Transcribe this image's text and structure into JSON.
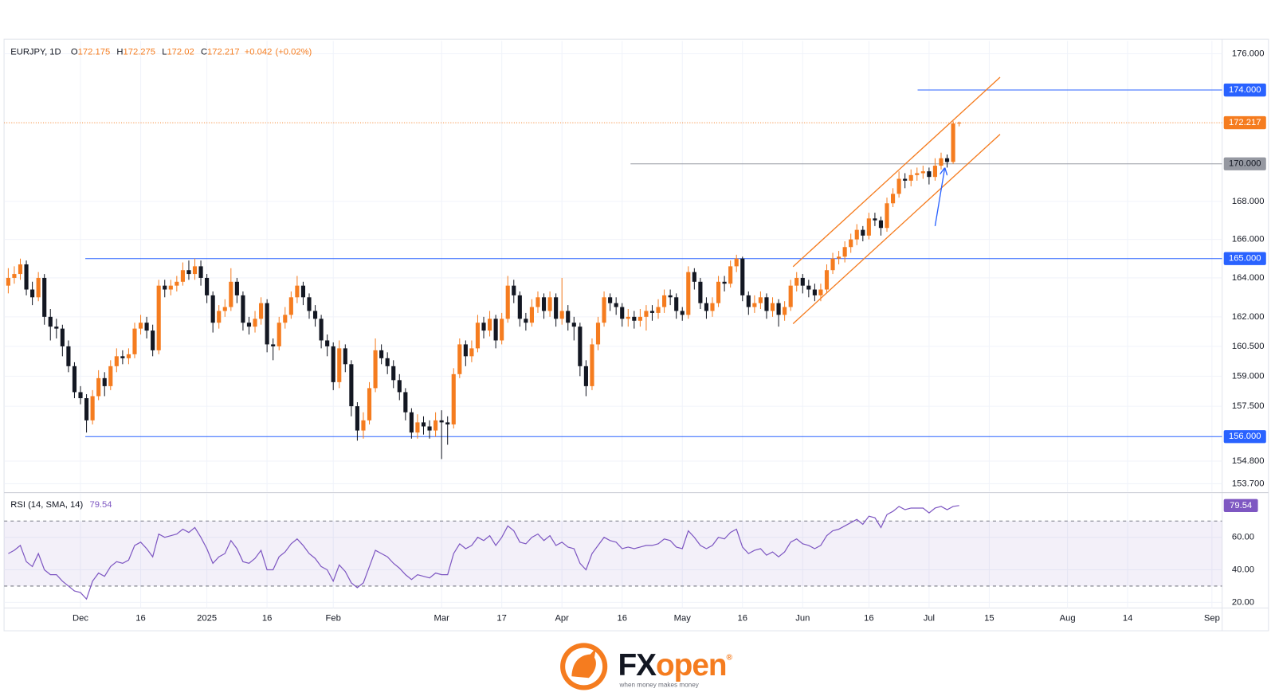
{
  "chart_data": [
    {
      "type": "candlestick",
      "title": "EURJPY, 1D",
      "ohlc_labels": [
        "O",
        "H",
        "L",
        "C"
      ],
      "change": "+0.042",
      "change_pct": "(+0.02%)",
      "up_color": "#f57c1f",
      "down_color": "#131722",
      "log_scale": true,
      "grid": true,
      "xlim": [
        -0.7,
        201.7
      ],
      "ylim": [
        153.31,
        176.72
      ],
      "yticks": [
        {
          "value": 176,
          "label": "176.000"
        },
        {
          "value": 168,
          "label": "168.000"
        },
        {
          "value": 166,
          "label": "166.000"
        },
        {
          "value": 164,
          "label": "164.000"
        },
        {
          "value": 162,
          "label": "162.000"
        },
        {
          "value": 160.5,
          "label": "160.500"
        },
        {
          "value": 159,
          "label": "159.000"
        },
        {
          "value": 157.5,
          "label": "157.500"
        },
        {
          "value": 154.8,
          "label": "154.800"
        },
        {
          "value": 153.7,
          "label": "153.700"
        }
      ],
      "open": [
        163.6,
        164.0,
        164.2,
        164.7,
        163.4,
        163.0,
        164.0,
        162.0,
        161.5,
        161.4,
        160.5,
        159.5,
        158.2,
        157.9,
        156.8,
        158.0,
        158.9,
        158.5,
        159.5,
        160.0,
        159.9,
        160.1,
        161.4,
        161.7,
        161.3,
        160.3,
        163.6,
        163.4,
        163.6,
        163.8,
        164.4,
        164.2,
        164.6,
        164.0,
        163.1,
        161.7,
        162.3,
        162.5,
        163.8,
        163.1,
        161.7,
        161.5,
        161.9,
        162.7,
        160.6,
        160.5,
        161.7,
        162.1,
        163.0,
        163.6,
        163.0,
        162.3,
        161.9,
        160.8,
        160.5,
        158.7,
        160.4,
        159.6,
        157.5,
        156.3,
        156.8,
        158.4,
        160.3,
        159.9,
        159.5,
        158.8,
        158.2,
        157.2,
        156.2,
        156.7,
        156.5,
        156.3,
        156.8,
        156.7,
        156.6,
        159.1,
        160.6,
        160.0,
        160.4,
        161.7,
        161.3,
        161.9,
        160.8,
        161.9,
        163.6,
        163.1,
        161.9,
        161.7,
        162.5,
        163.0,
        162.3,
        163.0,
        161.9,
        162.3,
        161.7,
        161.5,
        159.5,
        158.5,
        160.6,
        161.7,
        163.0,
        162.7,
        162.5,
        161.9,
        162.0,
        161.8,
        162.0,
        162.3,
        162.2,
        162.5,
        163.1,
        163.0,
        162.3,
        162.1,
        164.3,
        163.8,
        162.7,
        162.3,
        162.7,
        163.8,
        163.7,
        164.6,
        165.0,
        163.1,
        162.5,
        162.7,
        163.0,
        162.3,
        162.7,
        162.1,
        162.5,
        163.6,
        164.0,
        163.6,
        163.4,
        163.1,
        163.4,
        164.4,
        165.0,
        165.1,
        165.6,
        166.0,
        166.5,
        166.2,
        167.1,
        167.0,
        166.6,
        167.9,
        168.4,
        169.2,
        169.1,
        169.4,
        169.5,
        169.6,
        169.3,
        169.9,
        170.3,
        170.1,
        172.175
      ],
      "high": [
        164.5,
        164.6,
        165.0,
        164.9,
        163.8,
        164.3,
        164.2,
        162.4,
        161.9,
        161.6,
        160.8,
        159.7,
        158.5,
        158.1,
        158.3,
        159.3,
        159.2,
        159.8,
        160.4,
        160.3,
        160.4,
        161.7,
        162.1,
        162.0,
        161.6,
        163.9,
        163.9,
        163.9,
        164.1,
        164.8,
        164.9,
        165.0,
        164.9,
        164.2,
        163.3,
        162.6,
        162.9,
        164.5,
        164.0,
        163.3,
        162.0,
        162.3,
        163.0,
        162.9,
        160.9,
        162.0,
        162.5,
        163.3,
        164.1,
        163.8,
        163.2,
        162.6,
        162.1,
        161.1,
        160.7,
        160.8,
        160.6,
        159.8,
        157.7,
        157.2,
        158.7,
        160.9,
        160.6,
        160.2,
        159.8,
        159.1,
        158.4,
        157.4,
        157.1,
        157.0,
        156.8,
        157.2,
        157.3,
        157.0,
        159.4,
        160.9,
        160.8,
        160.8,
        162.1,
        162.0,
        162.3,
        162.1,
        162.2,
        164.1,
        163.9,
        163.3,
        162.2,
        162.9,
        163.3,
        163.2,
        163.3,
        163.2,
        164.0,
        162.6,
        162.0,
        161.7,
        159.8,
        160.9,
        162.0,
        163.3,
        163.2,
        163.0,
        162.7,
        162.4,
        162.3,
        162.4,
        162.6,
        162.6,
        162.9,
        163.4,
        163.4,
        163.2,
        162.5,
        164.6,
        164.5,
        164.0,
        163.0,
        163.0,
        164.1,
        164.1,
        164.9,
        165.2,
        165.1,
        163.3,
        163.1,
        163.3,
        163.2,
        163.0,
        162.9,
        162.8,
        163.9,
        164.3,
        164.2,
        163.9,
        163.7,
        163.7,
        164.7,
        165.3,
        165.4,
        165.9,
        166.3,
        166.8,
        166.7,
        167.4,
        167.4,
        167.2,
        168.2,
        168.7,
        169.6,
        169.5,
        169.7,
        169.8,
        169.9,
        169.8,
        170.3,
        170.6,
        170.5,
        172.3,
        172.275
      ],
      "low": [
        163.2,
        163.7,
        163.9,
        163.1,
        162.6,
        162.8,
        161.6,
        160.8,
        160.9,
        160.0,
        159.2,
        157.9,
        157.6,
        156.2,
        156.6,
        157.8,
        158.0,
        158.3,
        159.2,
        159.6,
        159.6,
        159.9,
        161.1,
        160.9,
        160.0,
        160.1,
        163.0,
        163.1,
        163.3,
        163.6,
        163.9,
        163.9,
        163.6,
        162.7,
        161.2,
        161.4,
        162.0,
        162.3,
        162.7,
        161.3,
        161.1,
        161.2,
        161.6,
        160.2,
        159.8,
        160.3,
        161.4,
        161.9,
        162.7,
        162.6,
        161.9,
        161.5,
        160.4,
        160.0,
        158.3,
        158.4,
        159.2,
        157.0,
        155.8,
        155.9,
        156.6,
        158.2,
        159.6,
        159.1,
        158.4,
        157.8,
        156.8,
        155.9,
        155.9,
        156.1,
        155.9,
        156.0,
        154.9,
        155.6,
        156.4,
        158.9,
        159.5,
        159.7,
        160.2,
        160.9,
        161.0,
        160.4,
        160.6,
        161.7,
        162.7,
        161.5,
        161.3,
        161.5,
        162.2,
        161.9,
        162.0,
        161.5,
        161.6,
        161.3,
        160.8,
        159.0,
        158.0,
        158.3,
        160.3,
        161.5,
        162.3,
        162.1,
        161.5,
        161.5,
        161.4,
        161.5,
        161.3,
        161.8,
        161.9,
        162.2,
        162.6,
        161.9,
        161.8,
        161.9,
        163.4,
        162.4,
        161.9,
        162.0,
        162.5,
        163.3,
        163.5,
        164.3,
        162.8,
        162.1,
        162.2,
        162.4,
        161.9,
        162.0,
        161.5,
        161.8,
        162.3,
        163.3,
        163.2,
        163.0,
        162.8,
        162.8,
        163.2,
        164.2,
        164.7,
        164.8,
        165.3,
        165.7,
        165.9,
        166.0,
        166.7,
        166.2,
        166.4,
        167.7,
        168.2,
        168.7,
        168.8,
        169.1,
        169.2,
        168.9,
        169.1,
        169.7,
        169.8,
        170.0,
        172.02
      ],
      "close": [
        164.0,
        164.2,
        164.7,
        163.4,
        163.0,
        164.0,
        162.0,
        161.5,
        161.4,
        160.5,
        159.5,
        158.2,
        157.9,
        156.8,
        158.0,
        158.9,
        158.5,
        159.5,
        160.0,
        159.9,
        160.1,
        161.4,
        161.7,
        161.3,
        160.3,
        163.6,
        163.4,
        163.6,
        163.8,
        164.4,
        164.2,
        164.6,
        164.0,
        163.1,
        161.7,
        162.3,
        162.5,
        163.8,
        163.1,
        161.7,
        161.5,
        161.9,
        162.7,
        160.6,
        160.5,
        161.7,
        162.1,
        163.0,
        163.6,
        163.0,
        162.3,
        161.9,
        160.8,
        160.5,
        158.7,
        160.4,
        159.6,
        157.5,
        156.3,
        156.8,
        158.4,
        160.3,
        159.9,
        159.5,
        158.8,
        158.2,
        157.2,
        156.2,
        156.7,
        156.5,
        156.3,
        156.8,
        156.7,
        156.6,
        159.1,
        160.6,
        160.0,
        160.4,
        161.7,
        161.3,
        161.9,
        160.8,
        161.9,
        163.6,
        163.1,
        161.9,
        161.7,
        162.5,
        163.0,
        162.3,
        163.0,
        161.9,
        162.3,
        161.7,
        161.5,
        159.5,
        158.5,
        160.6,
        161.7,
        163.0,
        162.7,
        162.5,
        161.9,
        162.0,
        161.8,
        162.0,
        162.3,
        162.2,
        162.5,
        163.1,
        163.0,
        162.3,
        162.1,
        164.3,
        163.8,
        162.7,
        162.3,
        162.7,
        163.8,
        163.7,
        164.6,
        165.0,
        163.1,
        162.5,
        162.7,
        163.0,
        162.3,
        162.7,
        162.1,
        162.5,
        163.6,
        164.0,
        163.6,
        163.4,
        163.1,
        163.4,
        164.4,
        165.0,
        165.1,
        165.6,
        166.0,
        166.5,
        166.2,
        167.1,
        167.0,
        166.6,
        167.9,
        168.4,
        169.2,
        169.1,
        169.4,
        169.5,
        169.6,
        169.3,
        169.9,
        170.3,
        170.1,
        172.175,
        172.217
      ],
      "last_price_color": "#f57c1f",
      "levels": [
        {
          "value": 174,
          "label": "174.000",
          "start": 151.1,
          "color": "#2962ff",
          "text_color": "#ffffff"
        },
        {
          "value": 170,
          "label": "170.000",
          "start": 103.4,
          "color": "#9598a1",
          "text_color": "#131722"
        },
        {
          "value": 165,
          "label": "165.000",
          "start": 12.8,
          "color": "#2962ff",
          "text_color": "#ffffff"
        },
        {
          "value": 156,
          "label": "156.000",
          "start": 12.8,
          "color": "#2962ff",
          "text_color": "#ffffff"
        }
      ],
      "channel_color": "#f57c1f",
      "channel": [
        {
          "from": [
            130.4,
            164.58
          ],
          "to": [
            164.8,
            174.7
          ]
        },
        {
          "from": [
            130.4,
            161.65
          ],
          "to": [
            164.8,
            171.59
          ]
        }
      ],
      "arrow": {
        "from": [
          154.0,
          166.7
        ],
        "to": [
          155.6,
          169.76
        ],
        "color": "#2962ff"
      }
    },
    {
      "type": "line",
      "title": "RSI (14, SMA, 14)",
      "color": "#7e57c2",
      "log_scale": false,
      "grid": true,
      "band": [
        30,
        70
      ],
      "band_color": "#7e57c2",
      "xlim": [
        -0.7,
        201.7
      ],
      "xticks": [
        {
          "value": 12,
          "label": "Dec"
        },
        {
          "value": 22,
          "label": "16"
        },
        {
          "value": 33,
          "label": "2025"
        },
        {
          "value": 43,
          "label": "16"
        },
        {
          "value": 54,
          "label": "Feb"
        },
        {
          "value": 72,
          "label": "Mar"
        },
        {
          "value": 82,
          "label": "17"
        },
        {
          "value": 92,
          "label": "Apr"
        },
        {
          "value": 102,
          "label": "16"
        },
        {
          "value": 112,
          "label": "May"
        },
        {
          "value": 122,
          "label": "16"
        },
        {
          "value": 132,
          "label": "Jun"
        },
        {
          "value": 143,
          "label": "16"
        },
        {
          "value": 153,
          "label": "Jul"
        },
        {
          "value": 163,
          "label": "15"
        },
        {
          "value": 176,
          "label": "Aug"
        },
        {
          "value": 186,
          "label": "14"
        },
        {
          "value": 200,
          "label": "Sep"
        }
      ],
      "ylim": [
        16.5,
        87
      ],
      "yticks": [
        {
          "value": 60,
          "label": "60.00"
        },
        {
          "value": 40,
          "label": "40.00"
        },
        {
          "value": 20,
          "label": "20.00"
        }
      ],
      "values": [
        50,
        52,
        55,
        45,
        42,
        50,
        40,
        37,
        37,
        33,
        30,
        27,
        26,
        22,
        33,
        38,
        36,
        42,
        45,
        44,
        46,
        55,
        57,
        53,
        48,
        62,
        60,
        61,
        62,
        65,
        63,
        66,
        60,
        53,
        44,
        48,
        50,
        58,
        53,
        45,
        44,
        47,
        52,
        40,
        40,
        48,
        51,
        56,
        59,
        55,
        50,
        47,
        42,
        40,
        33,
        43,
        39,
        32,
        29,
        32,
        42,
        52,
        50,
        48,
        44,
        41,
        37,
        34,
        37,
        36,
        35,
        38,
        37,
        37,
        50,
        56,
        53,
        55,
        60,
        58,
        61,
        55,
        60,
        67,
        64,
        57,
        56,
        60,
        62,
        58,
        61,
        55,
        57,
        54,
        53,
        44,
        40,
        50,
        55,
        60,
        58,
        57,
        53,
        54,
        53,
        54,
        55,
        55,
        56,
        59,
        58,
        54,
        53,
        64,
        60,
        55,
        53,
        55,
        60,
        59,
        63,
        65,
        54,
        50,
        52,
        53,
        49,
        51,
        48,
        51,
        57,
        59,
        56,
        55,
        53,
        55,
        61,
        64,
        65,
        67,
        69,
        71,
        68,
        73,
        72,
        66,
        74,
        76,
        79,
        77,
        78,
        78,
        78,
        75,
        78,
        79,
        77,
        79,
        79.54
      ]
    }
  ],
  "branding": {
    "name_1": "FX",
    "name_2": "open",
    "mark": "®",
    "tagline": "when money makes money"
  }
}
